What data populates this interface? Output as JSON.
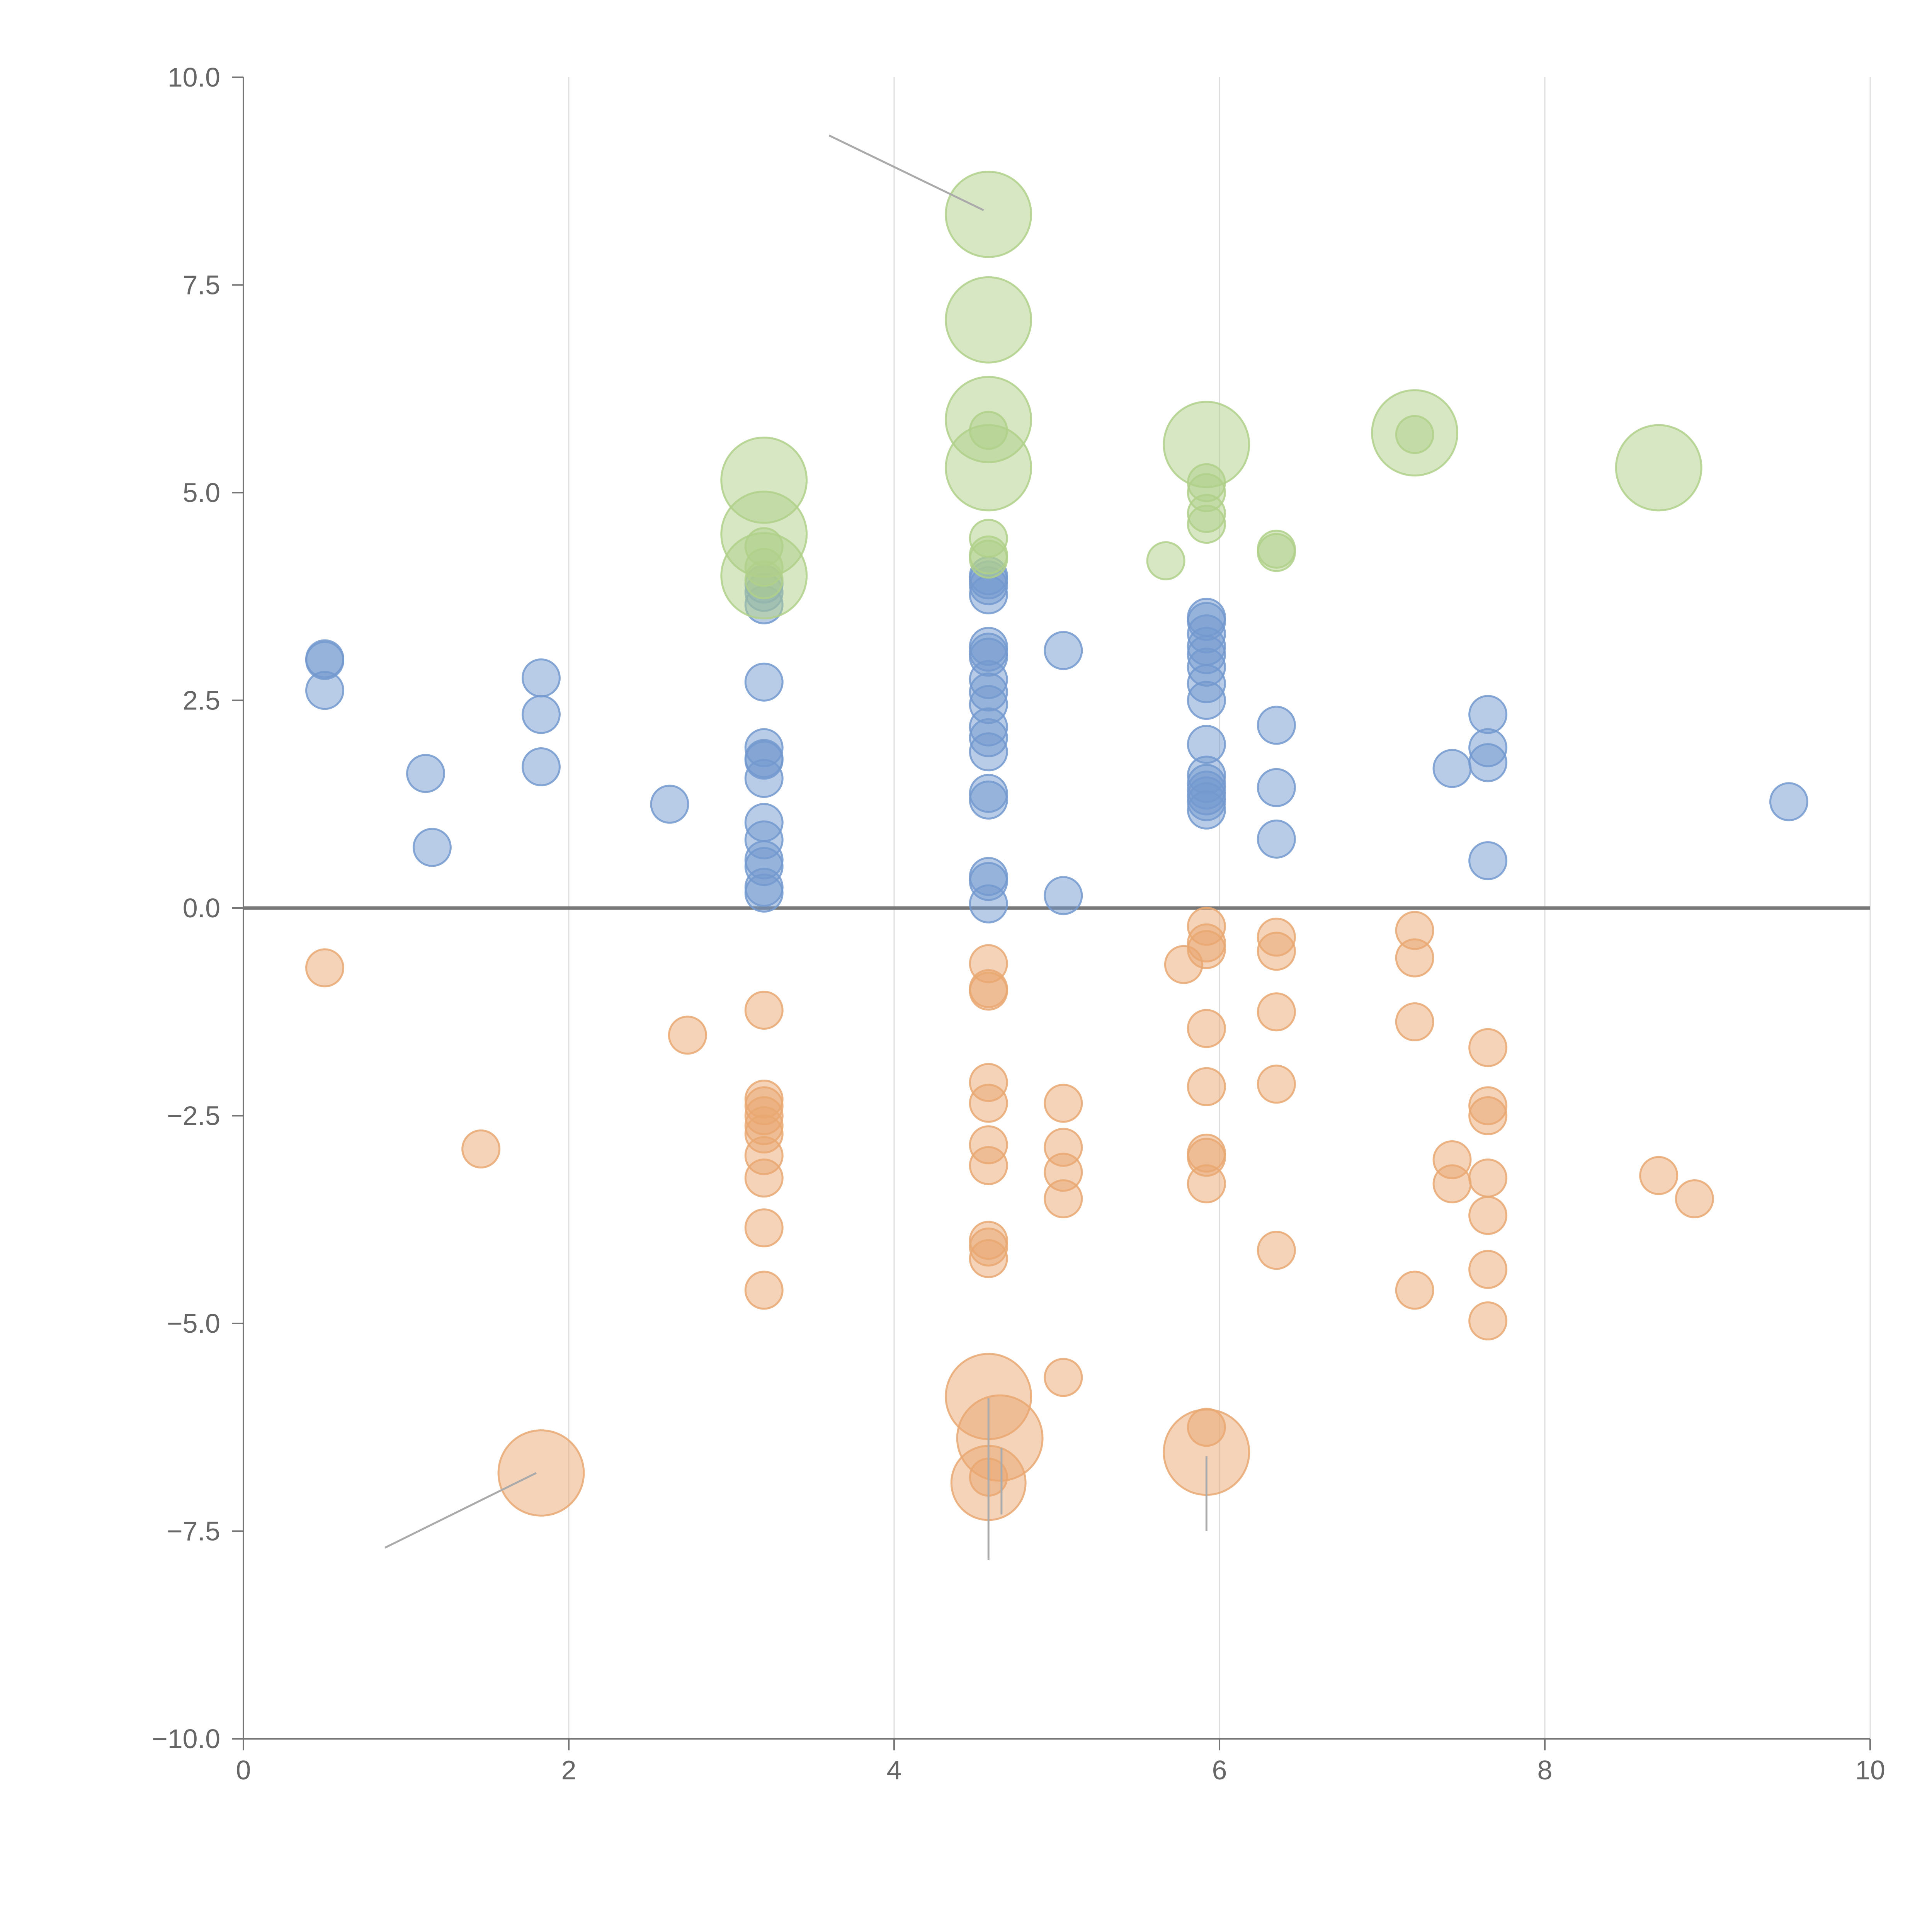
{
  "chart_data": {
    "type": "scatter",
    "title": "",
    "xlabel": "",
    "ylabel": "",
    "xlim": [
      0,
      10
    ],
    "ylim": [
      -10,
      10
    ],
    "x_ticks": [
      "0",
      "2",
      "4",
      "6",
      "8",
      "10"
    ],
    "x_tick_values": [
      0,
      2,
      4,
      6,
      8,
      10
    ],
    "y_ticks": [
      "10.0",
      "7.5",
      "5.0",
      "2.5",
      "0.0",
      "−2.5",
      "−5.0",
      "−7.5",
      "−10.0"
    ],
    "y_tick_values": [
      10,
      7.5,
      5,
      2.5,
      0,
      -2.5,
      -5,
      -7.5,
      -10
    ],
    "grid": "vertical gridlines at x ticks",
    "zero_line": 0,
    "series": [
      {
        "color": "#7399cf",
        "points": [
          [
            0.5,
            3.0,
            1
          ],
          [
            0.5,
            2.98,
            1
          ],
          [
            0.5,
            2.62,
            1
          ],
          [
            1.12,
            1.62,
            1
          ],
          [
            1.16,
            0.73,
            1
          ],
          [
            1.83,
            2.77,
            1
          ],
          [
            1.83,
            2.33,
            1
          ],
          [
            1.83,
            1.7,
            1
          ],
          [
            2.62,
            1.25,
            1
          ],
          [
            3.2,
            3.9,
            1
          ],
          [
            3.2,
            3.8,
            1
          ],
          [
            3.2,
            3.65,
            1
          ],
          [
            3.2,
            2.72,
            1
          ],
          [
            3.2,
            1.93,
            1
          ],
          [
            3.2,
            1.8,
            1
          ],
          [
            3.2,
            1.78,
            1
          ],
          [
            3.2,
            1.56,
            1
          ],
          [
            3.2,
            1.03,
            1
          ],
          [
            3.2,
            0.82,
            1
          ],
          [
            3.2,
            0.58,
            1
          ],
          [
            3.2,
            0.5,
            1
          ],
          [
            3.2,
            0.25,
            1
          ],
          [
            3.2,
            0.18,
            1
          ],
          [
            4.58,
            4.0,
            1
          ],
          [
            4.58,
            3.95,
            1
          ],
          [
            4.58,
            3.88,
            1
          ],
          [
            4.58,
            3.77,
            1
          ],
          [
            4.58,
            3.15,
            1
          ],
          [
            4.58,
            3.08,
            1
          ],
          [
            4.58,
            3.02,
            1
          ],
          [
            4.58,
            2.75,
            1
          ],
          [
            4.58,
            2.6,
            1
          ],
          [
            4.58,
            2.45,
            1
          ],
          [
            4.58,
            2.18,
            1
          ],
          [
            4.58,
            2.05,
            1
          ],
          [
            4.58,
            1.88,
            1
          ],
          [
            4.58,
            1.38,
            1
          ],
          [
            4.58,
            1.3,
            1
          ],
          [
            4.58,
            0.38,
            1
          ],
          [
            4.58,
            0.32,
            1
          ],
          [
            4.58,
            0.05,
            1
          ],
          [
            5.04,
            3.1,
            1
          ],
          [
            5.04,
            0.15,
            1
          ],
          [
            5.92,
            3.5,
            1
          ],
          [
            5.92,
            3.45,
            1
          ],
          [
            5.92,
            3.3,
            1
          ],
          [
            5.92,
            3.15,
            1
          ],
          [
            5.92,
            3.05,
            1
          ],
          [
            5.92,
            2.9,
            1
          ],
          [
            5.92,
            2.7,
            1
          ],
          [
            5.92,
            2.5,
            1
          ],
          [
            5.92,
            1.97,
            1
          ],
          [
            5.92,
            1.6,
            1
          ],
          [
            5.92,
            1.5,
            1
          ],
          [
            5.92,
            1.42,
            1
          ],
          [
            5.92,
            1.35,
            1
          ],
          [
            5.92,
            1.28,
            1
          ],
          [
            5.92,
            1.18,
            1
          ],
          [
            6.35,
            2.2,
            1
          ],
          [
            6.35,
            1.45,
            1
          ],
          [
            6.35,
            0.83,
            1
          ],
          [
            7.43,
            1.68,
            1
          ],
          [
            7.65,
            2.33,
            1
          ],
          [
            7.65,
            1.93,
            1
          ],
          [
            7.65,
            1.75,
            1
          ],
          [
            7.65,
            0.57,
            1
          ],
          [
            9.5,
            1.28,
            1
          ]
        ]
      },
      {
        "color": "#e9a872",
        "points": [
          [
            0.5,
            -0.72,
            1
          ],
          [
            1.46,
            -2.9,
            1
          ],
          [
            2.73,
            -1.53,
            1
          ],
          [
            3.2,
            -1.23,
            1
          ],
          [
            3.2,
            -2.3,
            1
          ],
          [
            3.2,
            -2.38,
            1
          ],
          [
            3.2,
            -2.5,
            1
          ],
          [
            3.2,
            -2.62,
            1
          ],
          [
            3.2,
            -2.72,
            1
          ],
          [
            3.2,
            -2.98,
            1
          ],
          [
            3.2,
            -3.25,
            1
          ],
          [
            3.2,
            -3.85,
            1
          ],
          [
            3.2,
            -4.6,
            1
          ],
          [
            4.58,
            -0.67,
            1
          ],
          [
            4.58,
            -0.97,
            1
          ],
          [
            4.58,
            -1.0,
            1
          ],
          [
            4.58,
            -2.1,
            1
          ],
          [
            4.58,
            -2.35,
            1
          ],
          [
            4.58,
            -2.85,
            1
          ],
          [
            4.58,
            -3.1,
            1
          ],
          [
            4.58,
            -4.0,
            1
          ],
          [
            4.58,
            -4.08,
            1
          ],
          [
            4.58,
            -4.22,
            1
          ],
          [
            4.58,
            -6.85,
            1
          ],
          [
            5.04,
            -2.35,
            1
          ],
          [
            5.04,
            -2.88,
            1
          ],
          [
            5.04,
            -3.18,
            1
          ],
          [
            5.04,
            -3.5,
            1
          ],
          [
            5.04,
            -5.65,
            1
          ],
          [
            5.78,
            -0.68,
            1
          ],
          [
            5.92,
            -0.22,
            1
          ],
          [
            5.92,
            -0.42,
            1
          ],
          [
            5.92,
            -0.5,
            1
          ],
          [
            5.92,
            -1.45,
            1
          ],
          [
            5.92,
            -2.15,
            1
          ],
          [
            5.92,
            -2.95,
            1
          ],
          [
            5.92,
            -3.0,
            1
          ],
          [
            5.92,
            -3.32,
            1
          ],
          [
            5.92,
            -6.25,
            1
          ],
          [
            6.35,
            -0.35,
            1
          ],
          [
            6.35,
            -0.52,
            1
          ],
          [
            6.35,
            -1.25,
            1
          ],
          [
            6.35,
            -2.12,
            1
          ],
          [
            6.35,
            -4.12,
            1
          ],
          [
            7.2,
            -0.27,
            1
          ],
          [
            7.2,
            -0.6,
            1
          ],
          [
            7.2,
            -1.37,
            1
          ],
          [
            7.2,
            -4.6,
            1
          ],
          [
            7.43,
            -3.03,
            1
          ],
          [
            7.43,
            -3.32,
            1
          ],
          [
            7.65,
            -1.68,
            1
          ],
          [
            7.65,
            -2.38,
            1
          ],
          [
            7.65,
            -2.5,
            1
          ],
          [
            7.65,
            -3.25,
            1
          ],
          [
            7.65,
            -3.7,
            1
          ],
          [
            7.65,
            -4.35,
            1
          ],
          [
            7.65,
            -4.97,
            1
          ],
          [
            8.7,
            -3.22,
            1
          ],
          [
            8.92,
            -3.5,
            1
          ],
          [
            1.83,
            -6.8,
            2.3
          ],
          [
            4.58,
            -5.88,
            2.3
          ],
          [
            4.65,
            -6.38,
            2.3
          ],
          [
            4.58,
            -6.92,
            2.0
          ],
          [
            5.92,
            -6.55,
            2.3
          ]
        ]
      },
      {
        "color": "#b0d08a",
        "points": [
          [
            4.58,
            8.35,
            2.3
          ],
          [
            4.58,
            7.08,
            2.3
          ],
          [
            4.58,
            5.88,
            2.3
          ],
          [
            4.58,
            5.3,
            2.3
          ],
          [
            4.58,
            5.75,
            1
          ],
          [
            4.58,
            4.45,
            1
          ],
          [
            4.58,
            4.25,
            1
          ],
          [
            4.58,
            4.2,
            1
          ],
          [
            3.2,
            5.15,
            2.3
          ],
          [
            3.2,
            4.5,
            2.3
          ],
          [
            3.2,
            4.0,
            2.3
          ],
          [
            3.2,
            4.35,
            1
          ],
          [
            3.2,
            4.1,
            1
          ],
          [
            3.2,
            3.95,
            1
          ],
          [
            5.92,
            5.58,
            2.3
          ],
          [
            5.92,
            5.12,
            1
          ],
          [
            5.92,
            5.0,
            1
          ],
          [
            5.92,
            4.75,
            1
          ],
          [
            5.92,
            4.62,
            1
          ],
          [
            5.67,
            4.18,
            1
          ],
          [
            6.35,
            4.32,
            1
          ],
          [
            6.35,
            4.28,
            1
          ],
          [
            7.2,
            5.72,
            2.3
          ],
          [
            7.2,
            5.7,
            1
          ],
          [
            8.7,
            5.3,
            2.3
          ]
        ]
      }
    ]
  }
}
